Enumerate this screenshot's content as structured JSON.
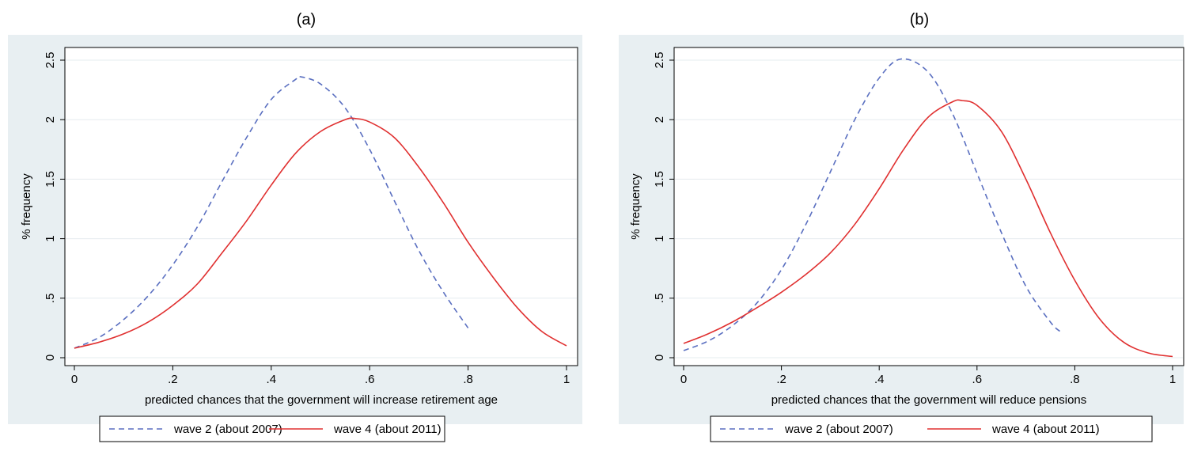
{
  "panels": [
    {
      "title": "(a)"
    },
    {
      "title": "(b)"
    }
  ],
  "chart_data": [
    {
      "type": "line",
      "panel_title": "(a)",
      "xlabel": "predicted chances that the government will increase retirement age",
      "ylabel": "% frequency",
      "xlim": [
        0,
        1
      ],
      "ylim": [
        0,
        2.5
      ],
      "xticks": [
        0,
        0.2,
        0.4,
        0.6,
        0.8,
        1
      ],
      "xtick_labels": [
        "0",
        ".2",
        ".4",
        ".6",
        ".8",
        "1"
      ],
      "yticks": [
        0,
        0.5,
        1,
        1.5,
        2,
        2.5
      ],
      "ytick_labels": [
        "0",
        ".5",
        "1",
        "1.5",
        "2",
        "2.5"
      ],
      "grid": true,
      "legend": "bottom",
      "series": [
        {
          "name": "wave 2 (about 2007)",
          "color": "#5a6fc0",
          "dash": true,
          "x": [
            0.0,
            0.05,
            0.1,
            0.15,
            0.2,
            0.25,
            0.3,
            0.35,
            0.4,
            0.45,
            0.46,
            0.5,
            0.55,
            0.6,
            0.65,
            0.7,
            0.75,
            0.8
          ],
          "y": [
            0.08,
            0.17,
            0.32,
            0.52,
            0.78,
            1.1,
            1.48,
            1.85,
            2.17,
            2.34,
            2.36,
            2.3,
            2.1,
            1.75,
            1.32,
            0.9,
            0.55,
            0.25
          ]
        },
        {
          "name": "wave 4 (about 2011)",
          "color": "#e03030",
          "dash": false,
          "x": [
            0.0,
            0.05,
            0.1,
            0.15,
            0.2,
            0.25,
            0.3,
            0.35,
            0.4,
            0.45,
            0.5,
            0.55,
            0.57,
            0.6,
            0.65,
            0.7,
            0.75,
            0.8,
            0.85,
            0.9,
            0.95,
            1.0
          ],
          "y": [
            0.08,
            0.13,
            0.2,
            0.3,
            0.44,
            0.62,
            0.88,
            1.15,
            1.45,
            1.72,
            1.9,
            2.0,
            2.01,
            1.98,
            1.85,
            1.6,
            1.3,
            0.97,
            0.68,
            0.42,
            0.22,
            0.1
          ]
        }
      ]
    },
    {
      "type": "line",
      "panel_title": "(b)",
      "xlabel": "predicted chances that the government will reduce pensions",
      "ylabel": "% frequency",
      "xlim": [
        0,
        1
      ],
      "ylim": [
        0,
        2.5
      ],
      "xticks": [
        0,
        0.2,
        0.4,
        0.6,
        0.8,
        1
      ],
      "xtick_labels": [
        "0",
        ".2",
        ".4",
        ".6",
        ".8",
        "1"
      ],
      "yticks": [
        0,
        0.5,
        1,
        1.5,
        2,
        2.5
      ],
      "ytick_labels": [
        "0",
        ".5",
        "1",
        "1.5",
        "2",
        "2.5"
      ],
      "grid": true,
      "legend": "bottom",
      "series": [
        {
          "name": "wave 2 (about 2007)",
          "color": "#5a6fc0",
          "dash": true,
          "x": [
            0.0,
            0.05,
            0.1,
            0.15,
            0.2,
            0.25,
            0.3,
            0.35,
            0.4,
            0.445,
            0.5,
            0.55,
            0.6,
            0.65,
            0.7,
            0.75,
            0.77
          ],
          "y": [
            0.06,
            0.14,
            0.27,
            0.46,
            0.74,
            1.12,
            1.56,
            2.0,
            2.35,
            2.51,
            2.4,
            2.05,
            1.55,
            1.05,
            0.6,
            0.3,
            0.22
          ]
        },
        {
          "name": "wave 4 (about 2011)",
          "color": "#e03030",
          "dash": false,
          "x": [
            0.0,
            0.05,
            0.1,
            0.15,
            0.2,
            0.25,
            0.3,
            0.35,
            0.4,
            0.45,
            0.5,
            0.55,
            0.57,
            0.6,
            0.65,
            0.7,
            0.75,
            0.8,
            0.85,
            0.9,
            0.95,
            1.0
          ],
          "y": [
            0.12,
            0.2,
            0.3,
            0.42,
            0.55,
            0.7,
            0.88,
            1.12,
            1.42,
            1.75,
            2.02,
            2.15,
            2.16,
            2.12,
            1.9,
            1.5,
            1.05,
            0.65,
            0.33,
            0.13,
            0.04,
            0.01
          ]
        }
      ]
    }
  ]
}
